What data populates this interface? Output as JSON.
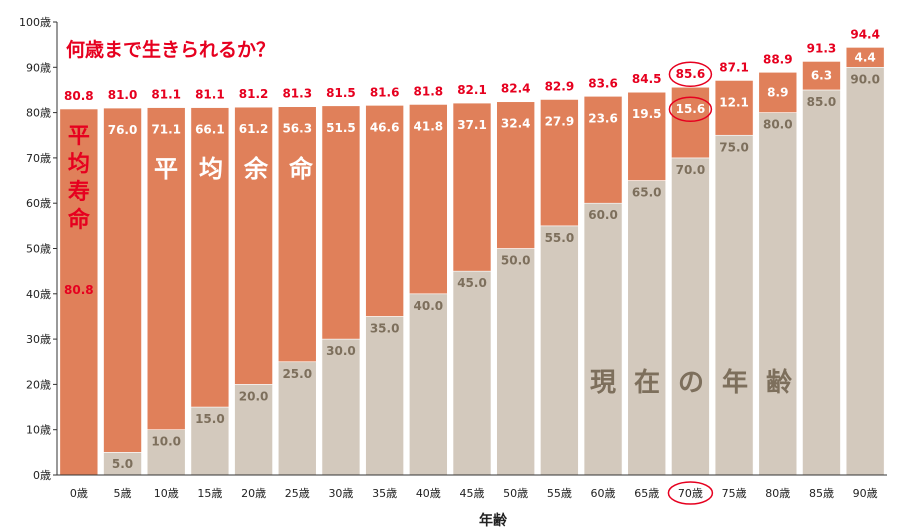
{
  "chart_data": {
    "type": "bar",
    "stacked": true,
    "title": "何歳まで生きられるか？",
    "xlabel": "年齢",
    "ylabel": "",
    "ylim": [
      0,
      100
    ],
    "y_ticks": [
      "0歳",
      "10歳",
      "20歳",
      "30歳",
      "40歳",
      "50歳",
      "60歳",
      "70歳",
      "80歳",
      "90歳",
      "100歳"
    ],
    "categories": [
      "0歳",
      "5歳",
      "10歳",
      "15歳",
      "20歳",
      "25歳",
      "30歳",
      "35歳",
      "40歳",
      "45歳",
      "50歳",
      "55歳",
      "60歳",
      "65歳",
      "70歳",
      "75歳",
      "80歳",
      "85歳",
      "90歳"
    ],
    "series": [
      {
        "values": [
          "",
          "5.0",
          "10.0",
          "15.0",
          "20.0",
          "25.0",
          "30.0",
          "35.0",
          "40.0",
          "45.0",
          "50.0",
          "55.0",
          "60.0",
          "65.0",
          "70.0",
          "75.0",
          "80.0",
          "85.0",
          "90.0"
        ],
        "color": "#d3c9bd"
      },
      {
        "values": [
          "80.8",
          "76.0",
          "71.1",
          "66.1",
          "61.2",
          "56.3",
          "51.5",
          "46.6",
          "41.8",
          "37.1",
          "32.4",
          "27.9",
          "23.6",
          "19.5",
          "15.6",
          "12.1",
          "8.9",
          "6.3",
          "4.4"
        ],
        "color": "#e0805a"
      }
    ],
    "totals": [
      "80.8",
      "81.0",
      "81.1",
      "81.1",
      "81.2",
      "81.3",
      "81.5",
      "81.6",
      "81.8",
      "82.1",
      "82.4",
      "82.9",
      "83.6",
      "84.5",
      "85.6",
      "87.1",
      "88.9",
      "91.3",
      "94.4"
    ],
    "annotations": {
      "life_expectancy": "平均寿命",
      "remaining_life": "平均余命",
      "current_age": "現在の年齢"
    },
    "highlight_index": 14,
    "colors": {
      "title": "#e6001f",
      "total_label": "#e6001f",
      "age_label": "#7d6f5c",
      "highlight_ring": "#e6001f"
    },
    "grid": false
  }
}
